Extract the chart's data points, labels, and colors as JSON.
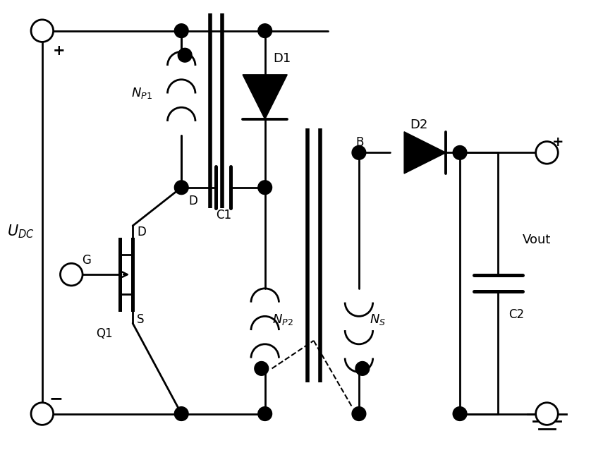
{
  "bg_color": "#ffffff",
  "line_color": "#000000",
  "lw": 2.0,
  "fig_width": 8.55,
  "fig_height": 6.45,
  "dpi": 100,
  "xlim": [
    0,
    8.55
  ],
  "ylim": [
    0,
    6.45
  ]
}
